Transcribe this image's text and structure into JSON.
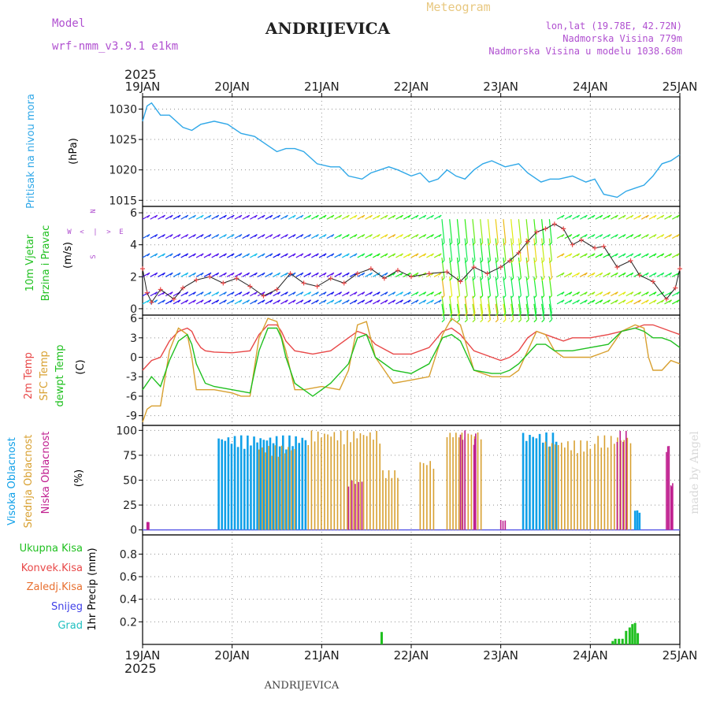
{
  "header": {
    "model_label": "Model",
    "model_version": "wrf-nmm_v3.9.1 e1km",
    "station": "ANDRIJEVICA",
    "product": "Meteogram",
    "lonlat": "lon,lat (19.78E, 42.72N)",
    "elevation": "Nadmorska Visina 779m",
    "elevation_model": "Nadmorska Visina u modelu 1038.68m",
    "year": "2025",
    "footer_station": "ANDRIJEVICA",
    "credit": "made by Angel"
  },
  "colors": {
    "pressure": "#30a8e8",
    "temp2m": "#e84848",
    "sfc": "#d8a030",
    "dewpt": "#20c020",
    "cloud_high": "#10a0e8",
    "cloud_mid": "#d8a030",
    "cloud_low": "#c02090",
    "precip": "#20c020",
    "model": "#b050d0"
  },
  "chart_data": [
    {
      "type": "line",
      "name": "pressure",
      "ylabel": [
        "Pritisak na nivou mora",
        "(hPa)"
      ],
      "x_ticks": [
        "19JAN",
        "20JAN",
        "21JAN",
        "22JAN",
        "23JAN",
        "24JAN",
        "25JAN"
      ],
      "x_range_days": [
        0,
        6
      ],
      "ylim": [
        1014,
        1032
      ],
      "y_ticks": [
        1015,
        1020,
        1025,
        1030
      ],
      "grid": true,
      "x": [
        0,
        0.05,
        0.1,
        0.2,
        0.3,
        0.45,
        0.55,
        0.65,
        0.8,
        0.95,
        1.1,
        1.25,
        1.4,
        1.5,
        1.6,
        1.7,
        1.8,
        1.95,
        2.1,
        2.2,
        2.3,
        2.45,
        2.55,
        2.65,
        2.75,
        2.85,
        3.0,
        3.1,
        3.2,
        3.3,
        3.4,
        3.5,
        3.6,
        3.7,
        3.8,
        3.9,
        4.05,
        4.2,
        4.3,
        4.45,
        4.55,
        4.65,
        4.8,
        4.95,
        5.05,
        5.15,
        5.3,
        5.4,
        5.5,
        5.6,
        5.7,
        5.8,
        5.9,
        6.0
      ],
      "values": [
        1028.0,
        1030.5,
        1031.0,
        1029.0,
        1029.0,
        1027.0,
        1026.5,
        1027.5,
        1028.0,
        1027.5,
        1026.0,
        1025.5,
        1024.0,
        1023.0,
        1023.5,
        1023.5,
        1023.0,
        1021.0,
        1020.5,
        1020.5,
        1019.0,
        1018.5,
        1019.5,
        1020.0,
        1020.5,
        1020.0,
        1019.0,
        1019.5,
        1018.0,
        1018.5,
        1020.0,
        1019.0,
        1018.5,
        1020.0,
        1021.0,
        1021.5,
        1020.5,
        1021.0,
        1019.5,
        1018.0,
        1018.5,
        1018.5,
        1019.0,
        1018.0,
        1018.5,
        1016.0,
        1015.5,
        1016.5,
        1017.0,
        1017.5,
        1019.0,
        1021.0,
        1021.5,
        1022.5
      ]
    },
    {
      "type": "line",
      "name": "wind",
      "ylabel": [
        "10m Vjetar",
        "Brzina i Pravac",
        "(m/s)"
      ],
      "compass": [
        "N",
        "W",
        "E",
        "S",
        "<",
        ">",
        "|",
        "-"
      ],
      "ylim": [
        -0.4,
        6.4
      ],
      "y_ticks": [
        0,
        2,
        4,
        6
      ],
      "grid": true,
      "arrow_rows_ms": [
        0.3,
        0.8,
        2.0,
        3.2,
        4.4,
        5.6
      ],
      "x": [
        0,
        0.05,
        0.1,
        0.2,
        0.35,
        0.45,
        0.6,
        0.75,
        0.9,
        1.05,
        1.2,
        1.35,
        1.5,
        1.65,
        1.8,
        1.95,
        2.1,
        2.25,
        2.4,
        2.55,
        2.7,
        2.85,
        3.0,
        3.2,
        3.4,
        3.55,
        3.7,
        3.85,
        4.0,
        4.1,
        4.2,
        4.3,
        4.4,
        4.5,
        4.6,
        4.7,
        4.8,
        4.9,
        5.05,
        5.15,
        5.3,
        5.45,
        5.55,
        5.7,
        5.85,
        5.95,
        6.0
      ],
      "values": [
        2.5,
        1.0,
        0.4,
        1.2,
        0.6,
        1.3,
        1.8,
        2.0,
        1.6,
        1.9,
        1.4,
        0.8,
        1.2,
        2.2,
        1.6,
        1.4,
        1.9,
        1.6,
        2.2,
        2.5,
        1.9,
        2.4,
        2.0,
        2.2,
        2.3,
        1.7,
        2.6,
        2.2,
        2.6,
        3.0,
        3.5,
        4.2,
        4.8,
        5.0,
        5.3,
        5.0,
        4.0,
        4.3,
        3.8,
        3.9,
        2.6,
        3.0,
        2.1,
        1.7,
        0.6,
        1.3,
        2.5
      ]
    },
    {
      "type": "line",
      "name": "temperature",
      "ylabel": [
        "2m Temp",
        "SFC Temp",
        "dewpt Temp",
        "(C)"
      ],
      "ylim": [
        -10.5,
        6.5
      ],
      "y_ticks": [
        6,
        3,
        0,
        -3,
        -6,
        -9
      ],
      "grid": true,
      "series": [
        {
          "name": "2m Temp",
          "x": [
            0,
            0.1,
            0.2,
            0.3,
            0.4,
            0.5,
            0.55,
            0.6,
            0.65,
            0.7,
            0.8,
            1.0,
            1.2,
            1.3,
            1.4,
            1.5,
            1.55,
            1.6,
            1.7,
            1.9,
            2.1,
            2.3,
            2.4,
            2.5,
            2.6,
            2.8,
            3.0,
            3.2,
            3.35,
            3.45,
            3.55,
            3.7,
            3.9,
            4.0,
            4.1,
            4.2,
            4.3,
            4.4,
            4.5,
            4.6,
            4.7,
            4.8,
            5.0,
            5.2,
            5.35,
            5.5,
            5.6,
            5.7,
            5.8,
            5.9,
            6.0
          ],
          "values": [
            -2,
            -0.5,
            0,
            2.5,
            4,
            4.5,
            4,
            2.5,
            1.5,
            1,
            0.8,
            0.7,
            1,
            3.5,
            5,
            5,
            4,
            2.5,
            1,
            0.5,
            1,
            3,
            4,
            3.5,
            2,
            0.5,
            0.5,
            1.5,
            4,
            4.5,
            3.5,
            1,
            0,
            -0.5,
            0,
            1,
            3,
            4,
            3.5,
            3,
            2.5,
            3,
            3,
            3.5,
            4,
            4.5,
            5,
            5,
            4.5,
            4,
            3.5
          ]
        },
        {
          "name": "SFC Temp",
          "x": [
            0,
            0.05,
            0.1,
            0.2,
            0.3,
            0.4,
            0.5,
            0.55,
            0.6,
            0.7,
            0.8,
            1.0,
            1.1,
            1.2,
            1.3,
            1.4,
            1.5,
            1.6,
            1.7,
            1.8,
            2.0,
            2.2,
            2.3,
            2.4,
            2.5,
            2.6,
            2.8,
            3.0,
            3.2,
            3.35,
            3.45,
            3.55,
            3.7,
            3.9,
            4.0,
            4.1,
            4.2,
            4.3,
            4.4,
            4.5,
            4.6,
            4.7,
            4.8,
            5.0,
            5.2,
            5.35,
            5.5,
            5.6,
            5.65,
            5.7,
            5.8,
            5.9,
            6.0
          ],
          "values": [
            -10,
            -8,
            -7.5,
            -7.5,
            1,
            4.5,
            3.5,
            0,
            -5,
            -5,
            -5,
            -5.5,
            -6,
            -6,
            3,
            6,
            5.5,
            1,
            -5,
            -5,
            -4.5,
            -5,
            -2,
            5,
            5.5,
            0,
            -4,
            -3.5,
            -3,
            3.5,
            6,
            5,
            -2,
            -3,
            -3,
            -3,
            -2,
            1,
            4,
            3.5,
            1,
            0,
            0,
            0,
            1,
            4,
            5,
            4.5,
            0,
            -2,
            -2,
            -0.5,
            -1
          ]
        },
        {
          "name": "dewpt Temp",
          "x": [
            0,
            0.1,
            0.2,
            0.3,
            0.4,
            0.5,
            0.55,
            0.6,
            0.7,
            0.8,
            1.0,
            1.2,
            1.3,
            1.4,
            1.5,
            1.55,
            1.6,
            1.7,
            1.8,
            1.9,
            2.1,
            2.3,
            2.4,
            2.5,
            2.6,
            2.8,
            3.0,
            3.2,
            3.35,
            3.45,
            3.55,
            3.7,
            3.9,
            4.0,
            4.1,
            4.2,
            4.3,
            4.4,
            4.5,
            4.6,
            4.8,
            5.0,
            5.2,
            5.35,
            5.5,
            5.6,
            5.7,
            5.8,
            5.9,
            6.0
          ],
          "values": [
            -5,
            -3,
            -4.5,
            -0.5,
            2.5,
            3.5,
            2,
            -1,
            -4,
            -4.5,
            -5,
            -5.5,
            1,
            4.5,
            4.5,
            3,
            0,
            -4,
            -5,
            -6,
            -4,
            -1,
            3,
            3.5,
            0,
            -2,
            -2.5,
            -1,
            3,
            3.5,
            2.5,
            -2,
            -2.5,
            -2.5,
            -2,
            -1,
            0.5,
            2,
            2,
            1,
            1,
            1.5,
            2,
            4,
            4.5,
            4,
            3,
            3,
            2.5,
            1.5
          ]
        }
      ]
    },
    {
      "type": "bar",
      "name": "cloud",
      "ylabel": [
        "Visoka Oblacnost",
        "Srednja Oblacnost",
        "Niska Oblacnost",
        "(%)"
      ],
      "ylim": [
        -5,
        105
      ],
      "y_ticks": [
        0,
        25,
        50,
        75,
        100
      ],
      "grid": true,
      "series": [
        {
          "name": "Visoka Oblacnost",
          "segments": [
            [
              0.85,
              1.82,
              95
            ],
            [
              4.25,
              4.62,
              98
            ],
            [
              5.5,
              5.55,
              20
            ]
          ]
        },
        {
          "name": "Srednja Oblacnost",
          "segments": [
            [
              1.3,
              1.7,
              85
            ],
            [
              1.85,
              2.65,
              100
            ],
            [
              2.65,
              2.85,
              60
            ],
            [
              3.1,
              3.25,
              70
            ],
            [
              3.4,
              3.6,
              100
            ],
            [
              3.6,
              3.78,
              100
            ],
            [
              4.5,
              5.0,
              90
            ],
            [
              5.05,
              5.45,
              95
            ]
          ]
        },
        {
          "name": "Niska Oblacnost",
          "segments": [
            [
              0.05,
              0.07,
              8
            ],
            [
              2.3,
              2.45,
              50
            ],
            [
              3.55,
              3.6,
              100
            ],
            [
              3.7,
              3.72,
              100
            ],
            [
              4.0,
              4.05,
              10
            ],
            [
              5.3,
              5.4,
              100
            ],
            [
              5.85,
              5.88,
              85
            ],
            [
              5.9,
              5.92,
              50
            ]
          ]
        }
      ]
    },
    {
      "type": "bar",
      "name": "precip",
      "ylabel": [
        "1hr Precip (mm)"
      ],
      "legend": [
        "Ukupna Kisa",
        "Konvek.Kisa",
        "Zaledj.Kisa",
        "Snijeg",
        "Grad"
      ],
      "legend_colors": [
        "#20c020",
        "#e84848",
        "#e87030",
        "#4040e8",
        "#20c0c0"
      ],
      "ylim": [
        0,
        0.97
      ],
      "y_ticks": [
        0.2,
        0.4,
        0.6,
        0.8
      ],
      "grid": true,
      "x": [
        2.67,
        5.25,
        5.28,
        5.32,
        5.36,
        5.4,
        5.44,
        5.47,
        5.5,
        5.53
      ],
      "values": [
        0.11,
        0.03,
        0.05,
        0.05,
        0.05,
        0.12,
        0.15,
        0.18,
        0.19,
        0.1
      ]
    }
  ]
}
